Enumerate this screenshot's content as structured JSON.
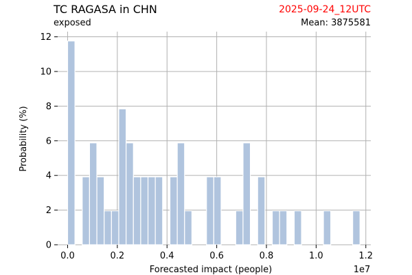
{
  "header": {
    "title": "TC RAGASA in CHN",
    "subtitle": "exposed",
    "date": "2025-09-24_12UTC",
    "mean_label": "Mean: 3875581"
  },
  "colors": {
    "date_color": "#ff0000",
    "bar_fill": "#b0c4de",
    "bar_edge": "#ffffff",
    "grid": "#b0b0b0"
  },
  "chart_data": {
    "type": "bar",
    "title": "TC RAGASA in CHN",
    "xlabel": "Forecasted impact (people)",
    "ylabel": "Probability (%)",
    "x_offset_label": "1e7",
    "xlim": [
      -0.04,
      1.22
    ],
    "ylim": [
      0,
      12.3
    ],
    "x_scale": 10000000,
    "bin_width": 0.0294,
    "x_ticks": [
      0.0,
      0.2,
      0.4,
      0.6,
      0.8,
      1.0,
      1.2
    ],
    "x_tick_labels": [
      "0.0",
      "0.2",
      "0.4",
      "0.6",
      "0.8",
      "1.0",
      "1.2"
    ],
    "y_ticks": [
      0,
      2,
      4,
      6,
      8,
      10,
      12
    ],
    "y_tick_labels": [
      "0",
      "2",
      "4",
      "6",
      "8",
      "10",
      "12"
    ],
    "grid": true,
    "bins": [
      {
        "x": 0.0147,
        "y": 11.76
      },
      {
        "x": 0.0735,
        "y": 3.92
      },
      {
        "x": 0.1029,
        "y": 5.88
      },
      {
        "x": 0.1324,
        "y": 3.92
      },
      {
        "x": 0.1618,
        "y": 1.96
      },
      {
        "x": 0.1912,
        "y": 1.96
      },
      {
        "x": 0.2206,
        "y": 7.84
      },
      {
        "x": 0.25,
        "y": 5.88
      },
      {
        "x": 0.2794,
        "y": 3.92
      },
      {
        "x": 0.3088,
        "y": 3.92
      },
      {
        "x": 0.3382,
        "y": 3.92
      },
      {
        "x": 0.3676,
        "y": 3.92
      },
      {
        "x": 0.4265,
        "y": 3.92
      },
      {
        "x": 0.4559,
        "y": 5.88
      },
      {
        "x": 0.4853,
        "y": 1.96
      },
      {
        "x": 0.5735,
        "y": 3.92
      },
      {
        "x": 0.6029,
        "y": 3.92
      },
      {
        "x": 0.6912,
        "y": 1.96
      },
      {
        "x": 0.7206,
        "y": 5.88
      },
      {
        "x": 0.7794,
        "y": 3.92
      },
      {
        "x": 0.8382,
        "y": 1.96
      },
      {
        "x": 0.8676,
        "y": 1.96
      },
      {
        "x": 0.9265,
        "y": 1.96
      },
      {
        "x": 1.0441,
        "y": 1.96
      },
      {
        "x": 1.1618,
        "y": 1.96
      }
    ]
  }
}
